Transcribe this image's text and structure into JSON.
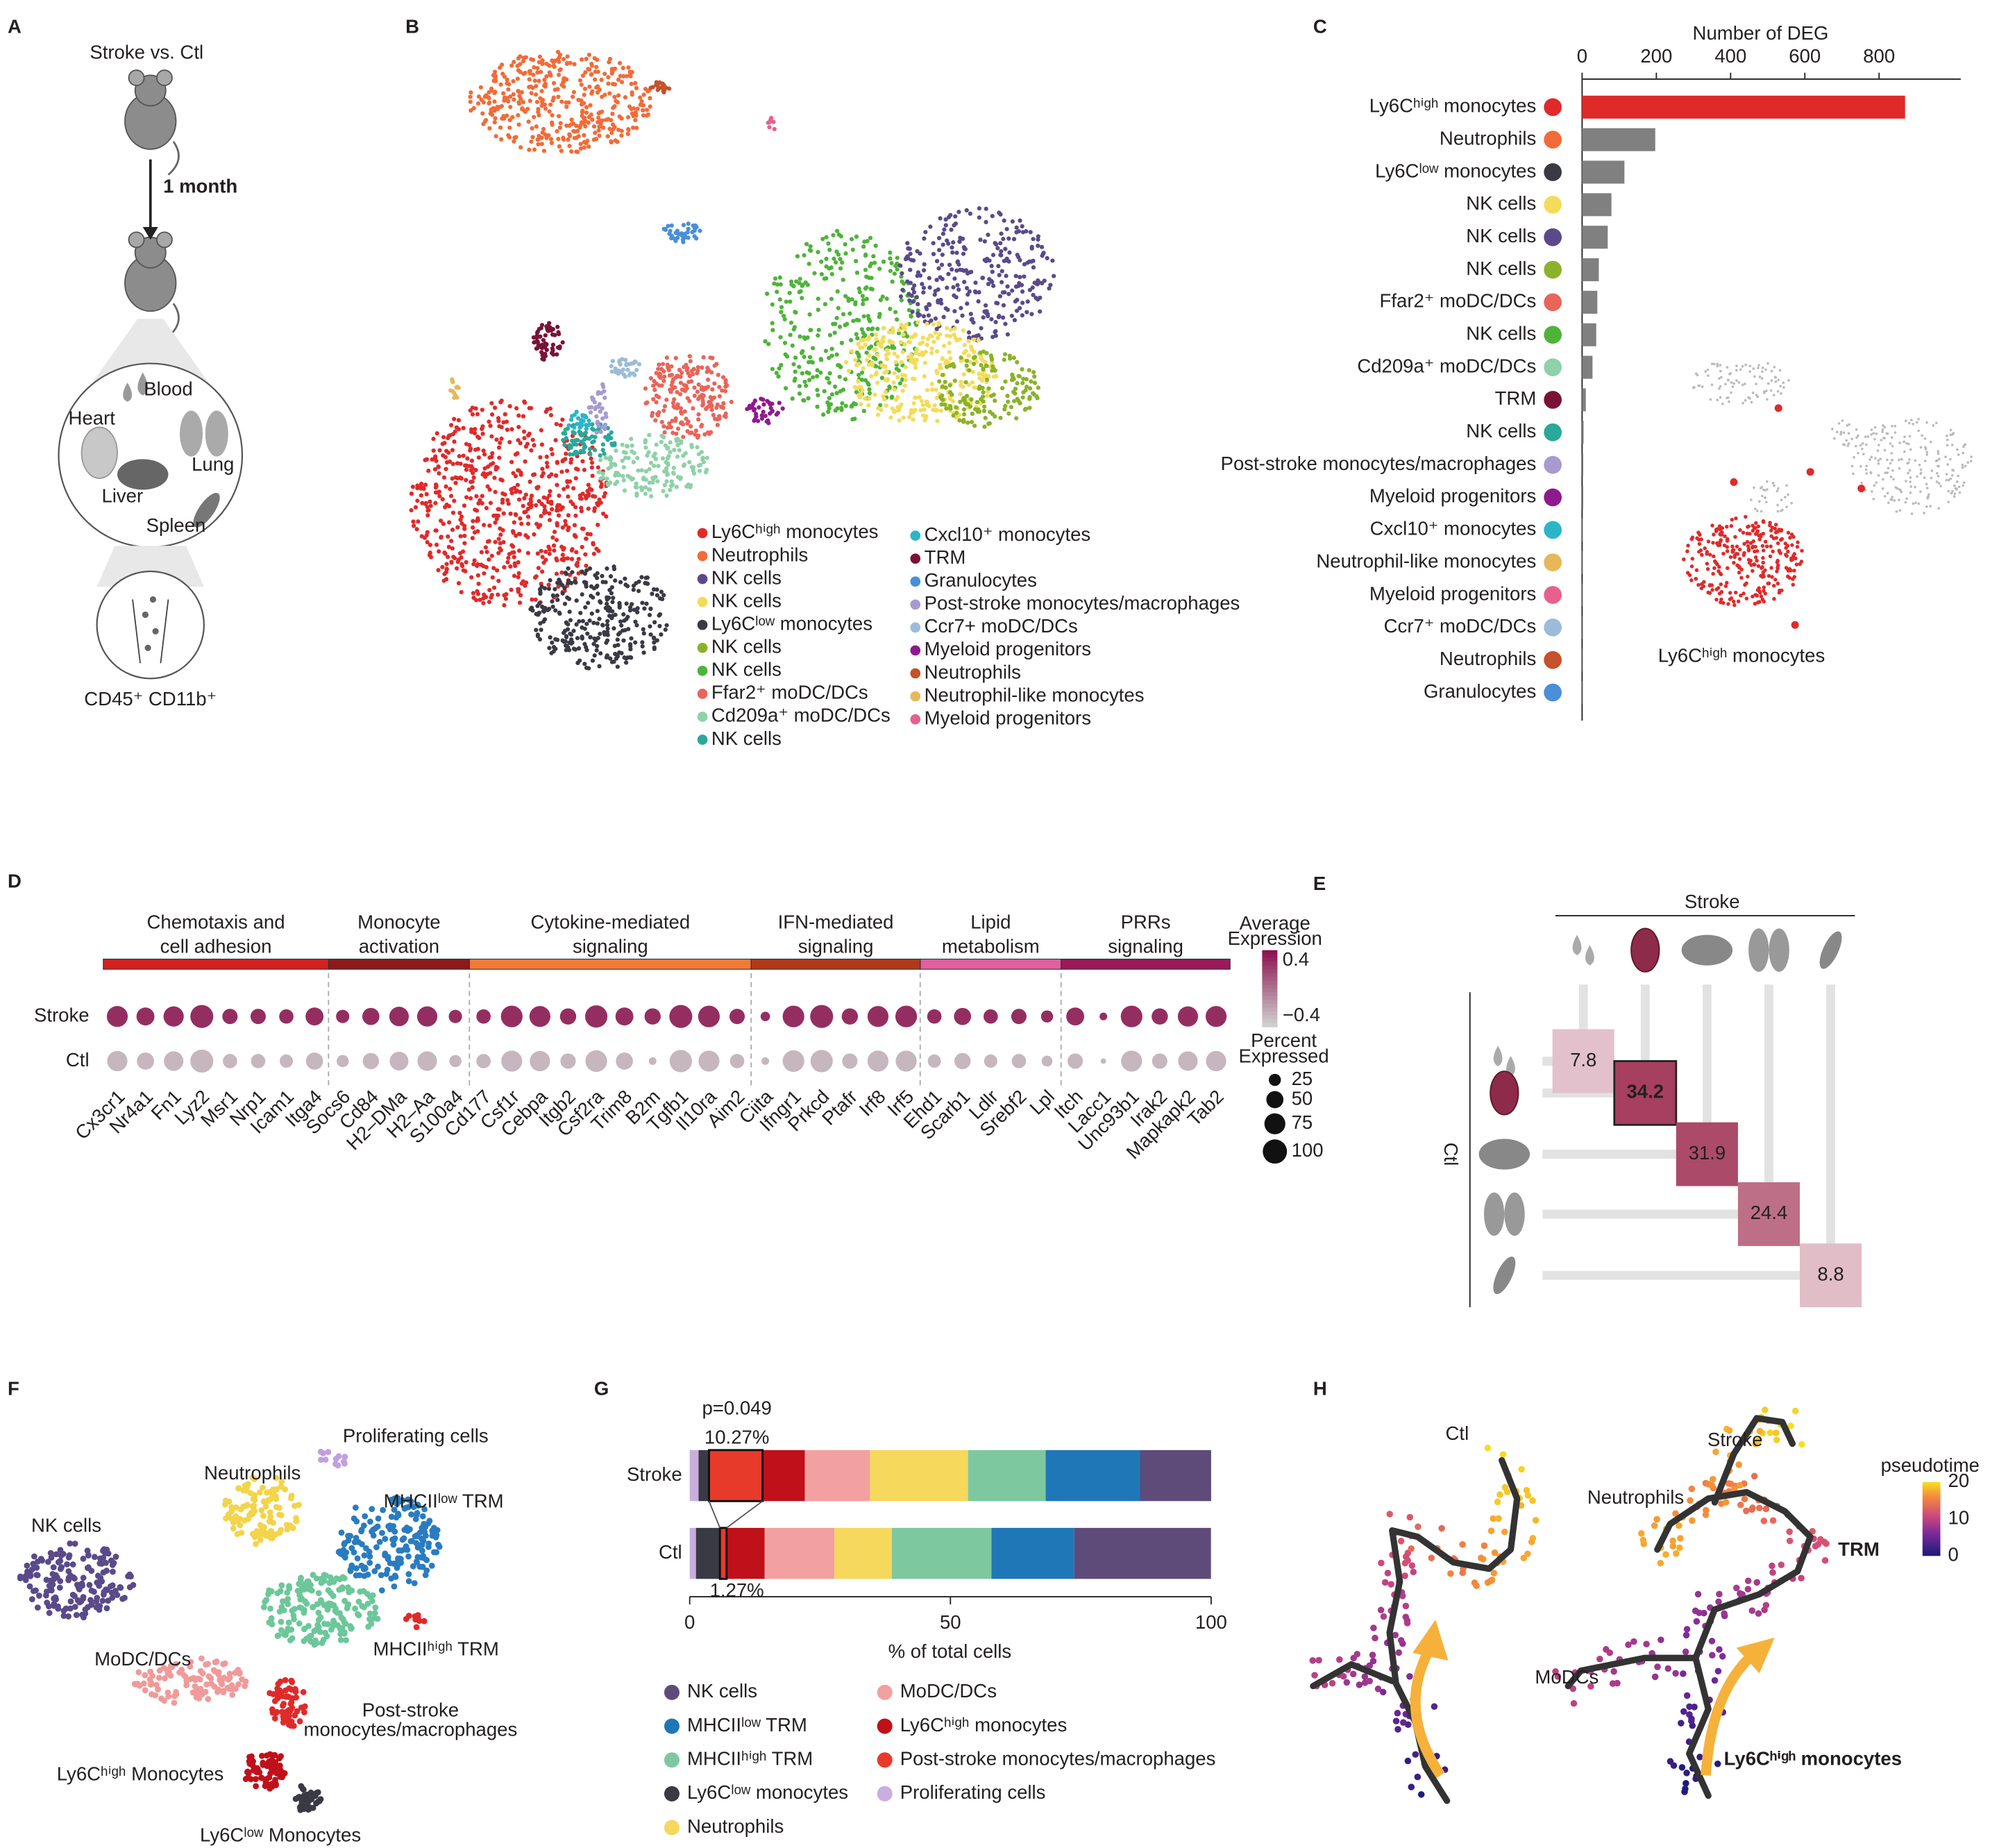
{
  "panel_labels": [
    "A",
    "B",
    "C",
    "D",
    "E",
    "F",
    "G",
    "H"
  ],
  "panels": {
    "A": {
      "title": "Stroke vs. Ctl",
      "interval": "1 month",
      "organs": [
        "Blood",
        "Heart",
        "Lung",
        "Liver",
        "Spleen"
      ],
      "cells": "CD45⁺ CD11b⁺"
    },
    "B": {
      "legend": [
        {
          "name": "Ly6Cʰⁱᵍʰ monocytes",
          "color": "#e02a2a"
        },
        {
          "name": "Neutrophils",
          "color": "#f26b38"
        },
        {
          "name": "NK cells",
          "color": "#5a4a8a"
        },
        {
          "name": "NK cells",
          "color": "#f3dc5b"
        },
        {
          "name": "Ly6Cˡᵒʷ monocytes",
          "color": "#3a3a44"
        },
        {
          "name": "NK cells",
          "color": "#8ab32a"
        },
        {
          "name": "NK cells",
          "color": "#4fb33a"
        },
        {
          "name": "Ffar2⁺ moDC/DCs",
          "color": "#e8655a"
        },
        {
          "name": "Cd209a⁺ moDC/DCs",
          "color": "#8fd1a8"
        },
        {
          "name": "NK cells",
          "color": "#2aa89a"
        },
        {
          "name": "Cxcl10⁺ monocytes",
          "color": "#2cb5c8"
        },
        {
          "name": "TRM",
          "color": "#7a1238"
        },
        {
          "name": "Granulocytes",
          "color": "#4a8fd8"
        },
        {
          "name": "Post-stroke monocytes/macrophages",
          "color": "#a69ad0"
        },
        {
          "name": "Ccr7+ moDC/DCs",
          "color": "#9bbcd9"
        },
        {
          "name": "Myeloid progenitors",
          "color": "#8e1a8e"
        },
        {
          "name": "Neutrophils",
          "color": "#c4522a"
        },
        {
          "name": "Neutrophil-like monocytes",
          "color": "#e6b85a"
        },
        {
          "name": "Myeloid progenitors",
          "color": "#e8608c"
        }
      ]
    },
    "C": {
      "inset_label": "Ly6Cʰⁱᵍʰ monocytes"
    },
    "F": {
      "labels": [
        {
          "lines": [
            "NK cells"
          ],
          "color": "#5a4a8a"
        },
        {
          "lines": [
            "Neutrophils"
          ],
          "color": "#e8c520"
        },
        {
          "lines": [
            "Proliferating cells"
          ],
          "color": "#c0a0e0"
        },
        {
          "lines": [
            "MHCIIˡᵒʷ TRM"
          ],
          "color": "#2a7cc0"
        },
        {
          "lines": [
            "MHCIIʰⁱᵍʰ TRM"
          ],
          "color": "#6cc79a"
        },
        {
          "lines": [
            "MoDC/DCs"
          ],
          "color": "#f09a9a"
        },
        {
          "lines": [
            "Post-stroke",
            "monocytes/macrophages"
          ],
          "color": "#e02a2a"
        },
        {
          "lines": [
            "Ly6Cʰⁱᵍʰ Monocytes"
          ],
          "color": "#c0101a"
        },
        {
          "lines": [
            "Ly6Cˡᵒʷ Monocytes"
          ],
          "color": "#444444"
        }
      ]
    },
    "H": {
      "titles": [
        "Ctl",
        "Stroke"
      ],
      "labels": [
        {
          "text": "Neutrophils",
          "color": "#e8655a"
        },
        {
          "text": "TRM",
          "color": "#d03060"
        },
        {
          "text": "MoDCs",
          "color": "#8e2a8e"
        },
        {
          "text": "Ly6Cʰⁱᵍʰ monocytes",
          "color": "#4a2a8a"
        }
      ],
      "colorbar_title": "pseudotime",
      "colorbar_ticks": [
        0,
        10,
        20
      ]
    }
  },
  "chart_data": [
    {
      "type": "hbar",
      "xlabel": "Number of DEG",
      "categories": [
        "Ly6Cʰⁱᵍʰ monocytes",
        "Neutrophils",
        "Ly6Cˡᵒʷ monocytes",
        "NK cells",
        "NK cells",
        "NK cells",
        "Ffar2⁺ moDC/DCs",
        "NK cells",
        "Cd209a⁺ moDC/DCs",
        "TRM",
        "NK cells",
        "Post-stroke monocytes/macrophages",
        "Myeloid progenitors",
        "Cxcl10⁺ monocytes",
        "Neutrophil-like monocytes",
        "Myeloid progenitors",
        "Ccr7⁺ moDC/DCs",
        "Neutrophils",
        "Granulocytes"
      ],
      "values": [
        870,
        197,
        114,
        79,
        69,
        45,
        41,
        38,
        28,
        10,
        4,
        3,
        3,
        2,
        2,
        2,
        1,
        1,
        1
      ],
      "bar_colors": [
        "#e02a2a",
        "#808080",
        "#808080",
        "#808080",
        "#808080",
        "#808080",
        "#808080",
        "#808080",
        "#808080",
        "#808080",
        "#808080",
        "#808080",
        "#808080",
        "#808080",
        "#808080",
        "#808080",
        "#808080",
        "#808080",
        "#808080"
      ],
      "dot_colors": [
        "#e02a2a",
        "#f26b38",
        "#3a3a44",
        "#f3dc5b",
        "#5a4a8a",
        "#8ab32a",
        "#e8655a",
        "#4fb33a",
        "#8fd1a8",
        "#7a1238",
        "#2aa89a",
        "#a69ad0",
        "#8e1a8e",
        "#2cb5c8",
        "#e6b85a",
        "#e8608c",
        "#9bbcd9",
        "#c4522a",
        "#4a8fd8"
      ],
      "xlim": [
        0,
        1020
      ],
      "xticks": [
        0,
        200,
        400,
        600,
        800
      ]
    },
    {
      "type": "dotplot",
      "groups": [
        {
          "label": [
            "Chemotaxis and",
            "cell adhesion"
          ],
          "color": "#d42020",
          "genes": [
            "Cx3cr1",
            "Nr4a1",
            "Fn1",
            "Lyz2",
            "Msr1",
            "Nrp1",
            "Icam1",
            "Itga4"
          ]
        },
        {
          "label": [
            "Monocyte",
            "activation"
          ],
          "color": "#8b1a1a",
          "genes": [
            "Socs6",
            "Cd84",
            "H2–DMa",
            "H2–Aa",
            "S100a4"
          ]
        },
        {
          "label": [
            "Cytokine-mediated",
            "signaling"
          ],
          "color": "#f07a3a",
          "genes": [
            "Cd177",
            "Csf1r",
            "Cebpa",
            "Itgb2",
            "Csf2ra",
            "Trim8",
            "B2m",
            "Tgfb1",
            "Il10ra",
            "Aim2"
          ]
        },
        {
          "label": [
            "IFN-mediated",
            "signaling"
          ],
          "color": "#b03a1a",
          "genes": [
            "Ciita",
            "Ifngr1",
            "Prkcd",
            "Ptafr",
            "Irf8",
            "Irf5"
          ]
        },
        {
          "label": [
            "Lipid",
            "metabolism"
          ],
          "color": "#e060a0",
          "genes": [
            "Ehd1",
            "Scarb1",
            "Ldlr",
            "Srebf2",
            "Lpl"
          ]
        },
        {
          "label": [
            "PRRs",
            "signaling"
          ],
          "color": "#9a1a5a",
          "genes": [
            "Itch",
            "Lacc1",
            "Unc93b1",
            "Irak2",
            "Mapkapk2",
            "Tab2"
          ]
        }
      ],
      "series": [
        {
          "name": "Stroke",
          "values": [
            0.4,
            0.4,
            0.4,
            0.4,
            0.4,
            0.4,
            0.4,
            0.4,
            0.4,
            0.4,
            0.4,
            0.4,
            0.4,
            0.4,
            0.4,
            0.4,
            0.4,
            0.4,
            0.4,
            0.4,
            0.4,
            0.4,
            0.4,
            0.4,
            0.4,
            0.4,
            0.4,
            0.4,
            0.4,
            0.4,
            0.4,
            0.4,
            0.4,
            0.4,
            0.4,
            0.4,
            0.4,
            0.4,
            0.4,
            0.4
          ],
          "pct": [
            75,
            55,
            70,
            90,
            40,
            40,
            35,
            55,
            30,
            50,
            65,
            70,
            30,
            35,
            80,
            75,
            45,
            85,
            55,
            45,
            90,
            80,
            40,
            15,
            80,
            90,
            45,
            75,
            80,
            35,
            50,
            35,
            40,
            25,
            55,
            10,
            80,
            45,
            70,
            75
          ]
        },
        {
          "name": "Ctl",
          "values": [
            -0.4,
            -0.4,
            -0.4,
            -0.4,
            -0.4,
            -0.4,
            -0.4,
            -0.4,
            -0.4,
            -0.4,
            -0.4,
            -0.4,
            -0.4,
            -0.4,
            -0.4,
            -0.4,
            -0.4,
            -0.4,
            -0.4,
            -0.4,
            -0.4,
            -0.4,
            -0.4,
            -0.4,
            -0.4,
            -0.4,
            -0.4,
            -0.4,
            -0.4,
            -0.4,
            -0.4,
            -0.4,
            -0.4,
            -0.4,
            -0.4,
            -0.4,
            -0.4,
            -0.4,
            -0.4,
            -0.4
          ],
          "pct": [
            70,
            50,
            65,
            90,
            35,
            35,
            30,
            50,
            25,
            45,
            60,
            65,
            25,
            35,
            75,
            70,
            40,
            80,
            50,
            10,
            85,
            75,
            35,
            10,
            80,
            85,
            40,
            75,
            75,
            30,
            45,
            30,
            35,
            20,
            40,
            5,
            75,
            40,
            65,
            70
          ]
        }
      ],
      "color_title": [
        "Average",
        "Expression"
      ],
      "colors": [
        "#cfcfcf",
        "#8b1450"
      ],
      "clim": [
        -0.55,
        0.55
      ],
      "cticks": [
        {
          "value": -0.4,
          "label": "−0.4"
        },
        0.4
      ],
      "size_title": [
        "Percent",
        "Expressed"
      ],
      "size_ticks": [
        25,
        50,
        75,
        100
      ]
    },
    {
      "type": "heatmap",
      "xlabel": "Stroke",
      "ylabel": "Ctl",
      "values": [
        7.8,
        34.2,
        31.9,
        24.4,
        8.8
      ],
      "colors": [
        "#f5e8ec",
        "#a63f60"
      ]
    },
    {
      "type": "stacked_hbar",
      "categories": [
        "Stroke",
        "Ctl"
      ],
      "xlabel": "% of total cells",
      "xlim": [
        0,
        100
      ],
      "xticks": [
        0,
        50,
        100
      ],
      "annotation": "p=0.049",
      "series": [
        {
          "name": "NK cells",
          "color": "#5e4b7a",
          "values": [
            13.63,
            26.2
          ]
        },
        {
          "name": "MHCIIˡᵒʷ TRM",
          "color": "#1f77b8",
          "values": [
            18.1,
            15.9
          ]
        },
        {
          "name": "MHCIIʰⁱᵍʰ TRM",
          "color": "#7ec8a0",
          "values": [
            14.9,
            19.1
          ]
        },
        {
          "name": "Ly6Cˡᵒʷ monocytes",
          "color": "#3a3a44",
          "values": [
            2.0,
            4.6
          ]
        },
        {
          "name": "Neutrophils",
          "color": "#f6d85c",
          "values": [
            18.8,
            11.0
          ]
        },
        {
          "name": "MoDC/DCs",
          "color": "#f2a0a0",
          "values": [
            12.5,
            13.4
          ]
        },
        {
          "name": "Ly6Cʰⁱᵍʰ monocytes",
          "color": "#c0101a",
          "values": [
            8.1,
            7.3
          ]
        },
        {
          "name": "Post-stroke monocytes/macrophages",
          "color": "#e83a2a",
          "values": [
            10.27,
            1.27
          ],
          "value_labels": [
            "10.27%",
            "1.27%"
          ]
        },
        {
          "name": "Proliferating cells",
          "color": "#c9aee0",
          "values": [
            1.7,
            1.2
          ]
        }
      ]
    }
  ]
}
